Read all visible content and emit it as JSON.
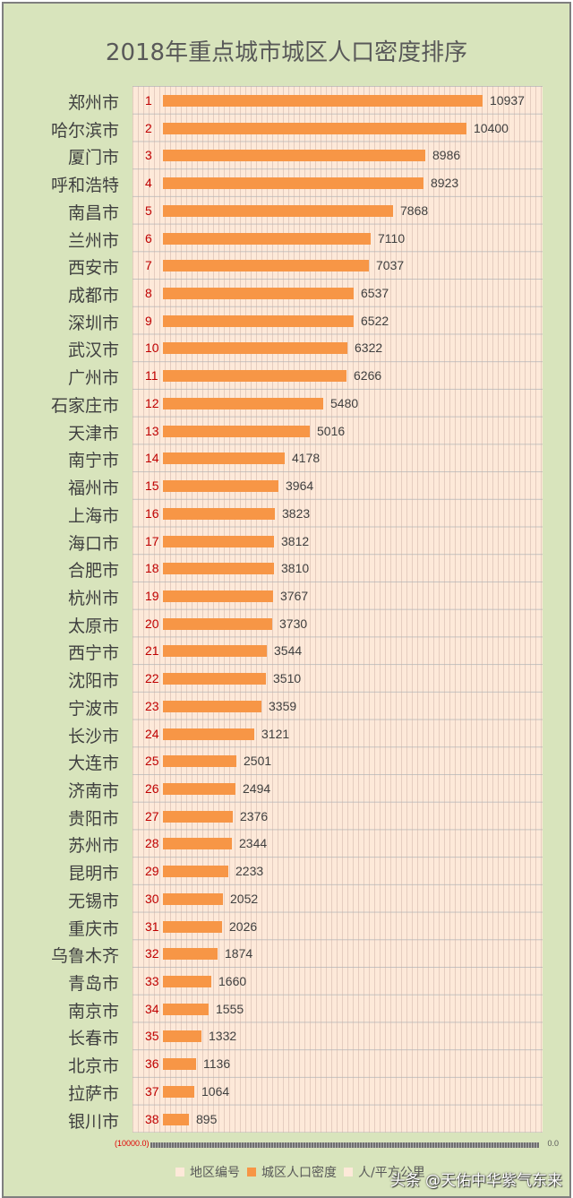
{
  "chart_data": {
    "type": "bar",
    "orientation": "horizontal",
    "title": "2018年重点城市城区人口密度排序",
    "xlabel": "",
    "ylabel": "",
    "unit": "人/平方公里",
    "grid": true,
    "legend_position": "bottom",
    "legend": [
      "地区编号",
      "城区人口密度",
      "人/平方公里"
    ],
    "categories": [
      "郑州市",
      "哈尔滨市",
      "厦门市",
      "呼和浩特",
      "南昌市",
      "兰州市",
      "西安市",
      "成都市",
      "深圳市",
      "武汉市",
      "广州市",
      "石家庄市",
      "天津市",
      "南宁市",
      "福州市",
      "上海市",
      "海口市",
      "合肥市",
      "杭州市",
      "太原市",
      "西宁市",
      "沈阳市",
      "宁波市",
      "长沙市",
      "大连市",
      "济南市",
      "贵阳市",
      "苏州市",
      "昆明市",
      "无锡市",
      "重庆市",
      "乌鲁木齐",
      "青岛市",
      "南京市",
      "长春市",
      "北京市",
      "拉萨市",
      "银川市"
    ],
    "ranks": [
      1,
      2,
      3,
      4,
      5,
      6,
      7,
      8,
      9,
      10,
      11,
      12,
      13,
      14,
      15,
      16,
      17,
      18,
      19,
      20,
      21,
      22,
      23,
      24,
      25,
      26,
      27,
      28,
      29,
      30,
      31,
      32,
      33,
      34,
      35,
      36,
      37,
      38
    ],
    "series": [
      {
        "name": "城区人口密度",
        "color": "#f79646",
        "values": [
          10937,
          10400,
          8986,
          8923,
          7868,
          7110,
          7037,
          6537,
          6522,
          6322,
          6266,
          5480,
          5016,
          4178,
          3964,
          3823,
          3812,
          3810,
          3767,
          3730,
          3544,
          3510,
          3359,
          3121,
          2501,
          2494,
          2376,
          2344,
          2233,
          2052,
          2026,
          1874,
          1660,
          1555,
          1332,
          1136,
          1064,
          895
        ]
      }
    ],
    "xlim": [
      0,
      14000
    ]
  },
  "axis": {
    "start_label": "(10000.0)",
    "end_label": "0.0"
  },
  "legend": {
    "items": [
      {
        "label": "地区编号",
        "color": "#fde9d9"
      },
      {
        "label": "城区人口密度",
        "color": "#f79646"
      },
      {
        "label": "人/平方公里",
        "color": "#fde9d9"
      }
    ]
  },
  "watermark": "头条 @天佑中华紫气东来",
  "colors": {
    "background": "#d8e4bc",
    "plot": "#fde9d9",
    "bar": "#f79646",
    "rank": "#c00000"
  }
}
